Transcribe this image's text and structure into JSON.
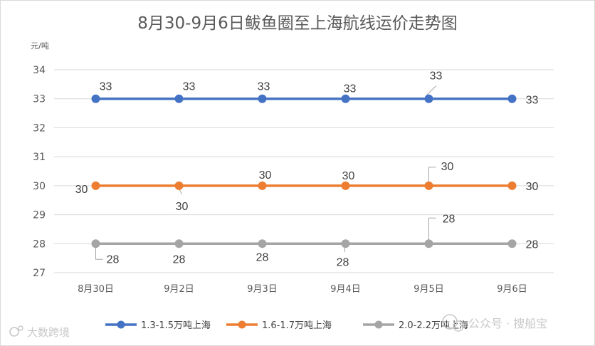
{
  "chart_data": {
    "type": "line",
    "title": "8月30-9月6日鲅鱼圈至上海航线运价走势图",
    "ylabel": "元/吨",
    "xlabel": "",
    "categories": [
      "8月30日",
      "9月2日",
      "9月3日",
      "9月4日",
      "9月5日",
      "9月6日"
    ],
    "ylim": [
      27,
      34
    ],
    "yticks": [
      27,
      28,
      29,
      30,
      31,
      32,
      33,
      34
    ],
    "grid": true,
    "legend": "bottom",
    "series": [
      {
        "name": "1.3-1.5万吨上海",
        "color": "#4472C4",
        "values": [
          33,
          33,
          33,
          33,
          33,
          33
        ]
      },
      {
        "name": "1.6-1.7万吨上海",
        "color": "#ED7D31",
        "values": [
          30,
          30,
          30,
          30,
          30,
          30
        ]
      },
      {
        "name": "2.0-2.2万吨上海",
        "color": "#A5A5A5",
        "values": [
          28,
          28,
          28,
          28,
          28,
          28
        ]
      }
    ]
  },
  "watermarks": {
    "left": "大数跨境",
    "right": "公众号 · 搜船宝"
  }
}
